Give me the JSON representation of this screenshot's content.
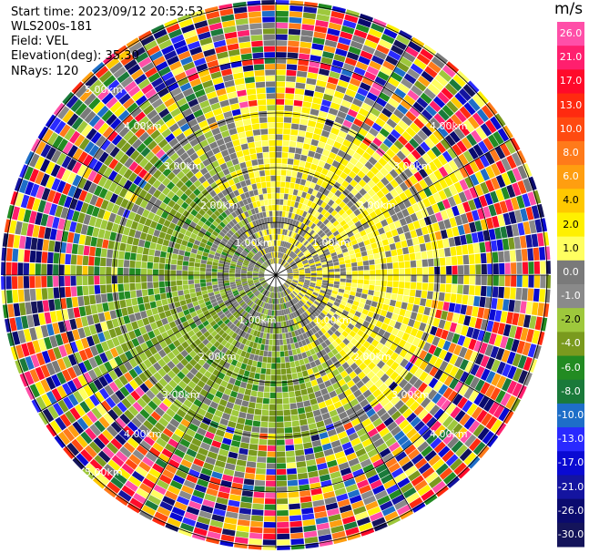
{
  "header": {
    "start_time": "Start time: 2023/09/12 20:52:53",
    "instrument": "WLS200s-181",
    "field": "Field: VEL",
    "elevation": "Elevation(deg): 35.30",
    "nrays": "NRays: 120"
  },
  "colorbar": {
    "unit": "m/s",
    "ticks": [
      "26.0",
      "21.0",
      "17.0",
      "13.0",
      "10.0",
      "8.0",
      "6.0",
      "4.0",
      "2.0",
      "1.0",
      "0.0",
      "-1.0",
      "-2.0",
      "-4.0",
      "-6.0",
      "-8.0",
      "-10.0",
      "-13.0",
      "-17.0",
      "-21.0",
      "-26.0",
      "-30.0"
    ],
    "colors": [
      "#ff4fa8",
      "#ff1f6e",
      "#ff0a2a",
      "#ff2a10",
      "#ff4a10",
      "#ff7a1a",
      "#ff9e10",
      "#ffc800",
      "#fff000",
      "#ffff60",
      "#7a7a7a",
      "#8a8a8a",
      "#9ec83c",
      "#7a9a1e",
      "#228b22",
      "#1a7a3a",
      "#1e6ec8",
      "#2a2aff",
      "#0a0ad2",
      "#1414a0",
      "#0a0a6e",
      "#14145a"
    ]
  },
  "range_rings": {
    "inner_labels": [
      "1.00km",
      "1.00km",
      "1.00km",
      "1.00km"
    ],
    "mid_labels": [
      "2.00km",
      "2.00km",
      "2.00km",
      "2.00km"
    ],
    "outer_labels": [
      "3.00km",
      "3.00km",
      "3.00km",
      "3.00km"
    ],
    "edge_labels": [
      "4.00km",
      "4.00km",
      "4.00km",
      "4.00km"
    ],
    "far_labels": [
      "5.00km",
      "5.00km"
    ]
  }
}
